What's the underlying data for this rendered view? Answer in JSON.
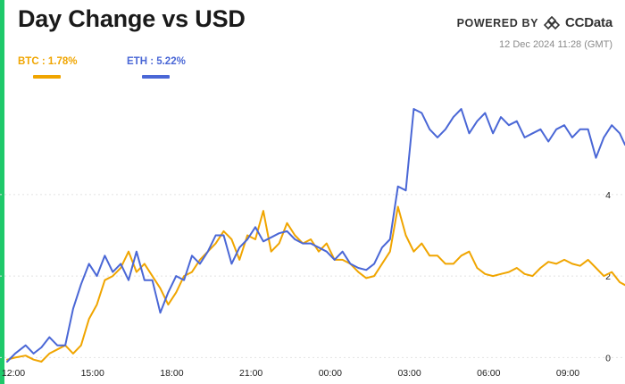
{
  "header": {
    "title": "Day Change vs USD",
    "powered_by": "POWERED BY",
    "brand_name": "CCData",
    "brand_icon": "ccdata-logo-icon",
    "timestamp": "12 Dec 2024 11:28 (GMT)"
  },
  "colors": {
    "accent": "#1ec96a",
    "btc": "#f0a500",
    "eth": "#4a67d6",
    "gridline": "#e2e2e2"
  },
  "chart_data": {
    "type": "line",
    "title": "Day Change vs USD",
    "xlabel": "",
    "ylabel": "",
    "x_unit": "hours since 12:00",
    "xlim": [
      0,
      23.4
    ],
    "ylim": [
      -0.1,
      6.8
    ],
    "x_ticks": [
      {
        "label": "12:00",
        "value": 0
      },
      {
        "label": "15:00",
        "value": 3
      },
      {
        "label": "18:00",
        "value": 6
      },
      {
        "label": "21:00",
        "value": 9
      },
      {
        "label": "00:00",
        "value": 12
      },
      {
        "label": "03:00",
        "value": 15
      },
      {
        "label": "06:00",
        "value": 18
      },
      {
        "label": "09:00",
        "value": 21
      }
    ],
    "y_ticks": [
      {
        "label": "0",
        "value": 0
      },
      {
        "label": "2",
        "value": 2
      },
      {
        "label": "4",
        "value": 4
      }
    ],
    "legend_position": "top-left",
    "series": [
      {
        "name": "BTC",
        "label": "BTC : 1.78%",
        "color": "#f0a500",
        "x": [
          0,
          0.3,
          0.7,
          1.0,
          1.3,
          1.6,
          1.9,
          2.2,
          2.5,
          2.8,
          3.1,
          3.4,
          3.7,
          4.0,
          4.3,
          4.6,
          4.9,
          5.2,
          5.5,
          5.8,
          6.1,
          6.4,
          6.7,
          7.0,
          7.3,
          7.6,
          7.9,
          8.2,
          8.5,
          8.8,
          9.1,
          9.4,
          9.7,
          10.0,
          10.3,
          10.6,
          10.9,
          11.2,
          11.5,
          11.8,
          12.1,
          12.4,
          12.7,
          13.0,
          13.3,
          13.6,
          13.9,
          14.2,
          14.5,
          14.8,
          15.1,
          15.4,
          15.7,
          16.0,
          16.3,
          16.6,
          16.9,
          17.2,
          17.5,
          17.8,
          18.1,
          18.4,
          18.7,
          19.0,
          19.3,
          19.6,
          19.9,
          20.2,
          20.5,
          20.8,
          21.1,
          21.4,
          21.7,
          22.0,
          22.3,
          22.6,
          22.9,
          23.2,
          23.4
        ],
        "values": [
          -0.05,
          0.0,
          0.05,
          -0.05,
          -0.1,
          0.1,
          0.2,
          0.3,
          0.1,
          0.3,
          0.95,
          1.3,
          1.9,
          2.0,
          2.2,
          2.6,
          2.1,
          2.3,
          2.0,
          1.7,
          1.3,
          1.6,
          2.0,
          2.1,
          2.4,
          2.6,
          2.8,
          3.1,
          2.9,
          2.4,
          3.0,
          2.9,
          3.6,
          2.6,
          2.8,
          3.3,
          3.0,
          2.8,
          2.9,
          2.6,
          2.8,
          2.4,
          2.4,
          2.3,
          2.1,
          1.95,
          2.0,
          2.3,
          2.6,
          3.7,
          3.0,
          2.6,
          2.8,
          2.5,
          2.5,
          2.3,
          2.3,
          2.5,
          2.6,
          2.2,
          2.05,
          2.0,
          2.05,
          2.1,
          2.2,
          2.05,
          2.0,
          2.2,
          2.35,
          2.3,
          2.4,
          2.3,
          2.25,
          2.4,
          2.2,
          2.0,
          2.1,
          1.85,
          1.78
        ]
      },
      {
        "name": "ETH",
        "label": "ETH : 5.22%",
        "color": "#4a67d6",
        "x": [
          0,
          0.3,
          0.7,
          1.0,
          1.3,
          1.6,
          1.9,
          2.2,
          2.5,
          2.8,
          3.1,
          3.4,
          3.7,
          4.0,
          4.3,
          4.6,
          4.9,
          5.2,
          5.5,
          5.8,
          6.1,
          6.4,
          6.7,
          7.0,
          7.3,
          7.6,
          7.9,
          8.2,
          8.5,
          8.8,
          9.1,
          9.4,
          9.7,
          10.0,
          10.3,
          10.6,
          10.9,
          11.2,
          11.5,
          11.8,
          12.1,
          12.4,
          12.7,
          13.0,
          13.3,
          13.6,
          13.9,
          14.2,
          14.5,
          14.8,
          15.1,
          15.4,
          15.7,
          16.0,
          16.3,
          16.6,
          16.9,
          17.2,
          17.5,
          17.8,
          18.1,
          18.4,
          18.7,
          19.0,
          19.3,
          19.6,
          19.9,
          20.2,
          20.5,
          20.8,
          21.1,
          21.4,
          21.7,
          22.0,
          22.3,
          22.6,
          22.9,
          23.2,
          23.4
        ],
        "values": [
          -0.1,
          0.1,
          0.3,
          0.1,
          0.25,
          0.5,
          0.3,
          0.3,
          1.2,
          1.8,
          2.3,
          2.0,
          2.5,
          2.1,
          2.3,
          1.9,
          2.6,
          1.9,
          1.9,
          1.1,
          1.6,
          2.0,
          1.9,
          2.5,
          2.3,
          2.6,
          3.0,
          3.0,
          2.3,
          2.7,
          2.9,
          3.2,
          2.85,
          2.95,
          3.05,
          3.1,
          2.9,
          2.8,
          2.8,
          2.7,
          2.6,
          2.4,
          2.6,
          2.3,
          2.2,
          2.15,
          2.3,
          2.7,
          2.9,
          4.2,
          4.1,
          6.1,
          6.0,
          5.6,
          5.4,
          5.6,
          5.9,
          6.1,
          5.5,
          5.8,
          6.0,
          5.5,
          5.9,
          5.7,
          5.8,
          5.4,
          5.5,
          5.6,
          5.3,
          5.6,
          5.7,
          5.4,
          5.6,
          5.6,
          4.9,
          5.4,
          5.7,
          5.5,
          5.22
        ]
      }
    ]
  }
}
